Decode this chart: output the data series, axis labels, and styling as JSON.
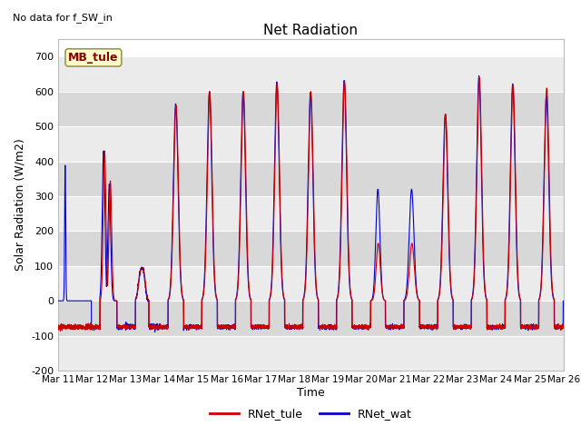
{
  "title": "Net Radiation",
  "top_left_text": "No data for f_SW_in",
  "ylabel": "Solar Radiation (W/m2)",
  "xlabel": "Time",
  "ylim": [
    -200,
    750
  ],
  "yticks": [
    -200,
    -100,
    0,
    100,
    200,
    300,
    400,
    500,
    600,
    700
  ],
  "color_tule": "#cc0000",
  "color_wat": "#0000cc",
  "legend_label_tule": "RNet_tule",
  "legend_label_wat": "RNet_wat",
  "mb_tule_label": "MB_tule",
  "plot_bg_light": "#ebebeb",
  "plot_bg_dark": "#d8d8d8",
  "start_day": 11,
  "n_days": 15,
  "points_per_day": 288,
  "linewidth": 0.8,
  "night_base": -75,
  "figsize": [
    6.4,
    4.8
  ],
  "dpi": 100
}
